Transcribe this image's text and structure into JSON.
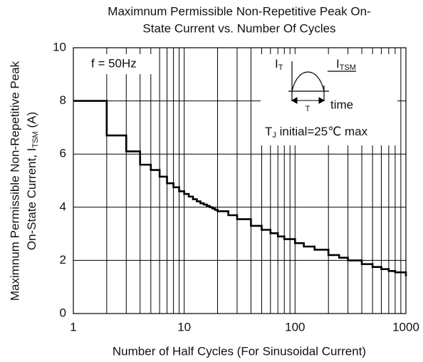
{
  "chart_data": {
    "type": "line",
    "drawstyle": "steps-post",
    "title": [
      "Maximnum Permissible Non-Repetitive Peak On-",
      "State Current vs. Number Of Cycles"
    ],
    "x_label": "Number of Half Cycles (For Sinusoidal Current)",
    "y_label": {
      "line1": "Maximnum Permissible Non-Repetitive Peak",
      "line2": "On-State Current, I",
      "sub": "TSM",
      "rest": " (A)"
    },
    "xscale": "log",
    "xlim": [
      1,
      1000
    ],
    "xticks": [
      1,
      10,
      100,
      1000
    ],
    "xminor": [
      2,
      3,
      4,
      5,
      6,
      7,
      8,
      9,
      20,
      30,
      40,
      50,
      60,
      70,
      80,
      90,
      200,
      300,
      400,
      500,
      600,
      700,
      800,
      900
    ],
    "ylim": [
      0,
      10
    ],
    "yticks": [
      0,
      2,
      4,
      6,
      8,
      10
    ],
    "grid": true,
    "color": "#000000",
    "x": [
      1,
      2,
      3,
      4,
      5,
      6,
      7,
      8,
      9,
      10,
      11,
      12,
      13,
      14,
      15,
      16,
      17,
      18,
      19,
      20,
      25,
      30,
      40,
      50,
      60,
      70,
      80,
      100,
      120,
      150,
      200,
      250,
      300,
      400,
      500,
      600,
      700,
      800,
      1000
    ],
    "values": [
      8,
      6.7,
      6.1,
      5.6,
      5.4,
      5.15,
      4.9,
      4.75,
      4.6,
      4.5,
      4.4,
      4.3,
      4.22,
      4.15,
      4.1,
      4.05,
      4.0,
      3.95,
      3.9,
      3.85,
      3.7,
      3.55,
      3.3,
      3.15,
      3.02,
      2.9,
      2.8,
      2.65,
      2.52,
      2.4,
      2.2,
      2.1,
      2.0,
      1.86,
      1.75,
      1.67,
      1.6,
      1.55,
      1.4
    ],
    "annotations": {
      "freq": "f = 50Hz",
      "it": {
        "main": "I",
        "sub": "T"
      },
      "itsm": {
        "main": "I",
        "sub": "TSM"
      },
      "time": "time",
      "period": "T",
      "tj": {
        "main": "T",
        "sub": "J",
        "rest": " initial=25℃ max"
      }
    }
  }
}
